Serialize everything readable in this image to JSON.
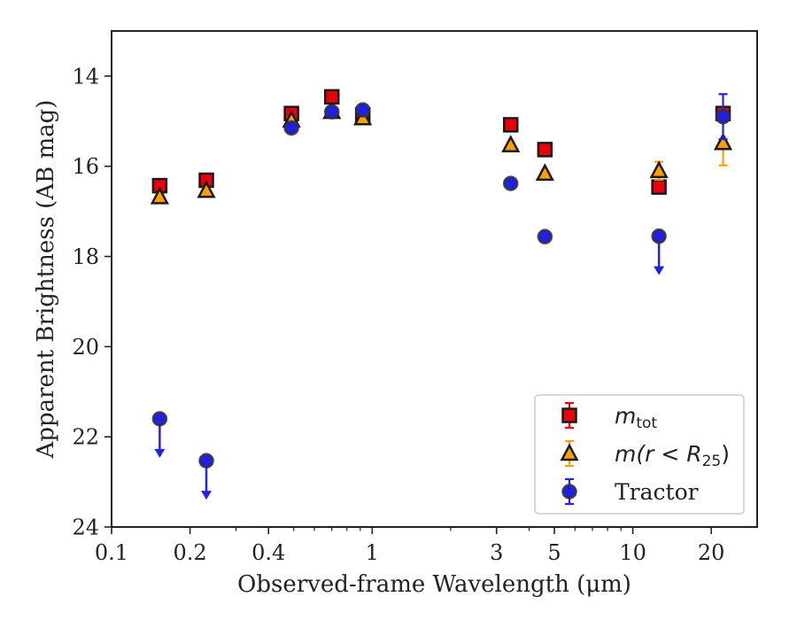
{
  "chart_data": {
    "type": "scatter",
    "xlabel": "Observed-frame Wavelength (μm)",
    "ylabel": "Apparent Brightness (AB mag)",
    "xscale": "log",
    "xlim": [
      0.1,
      30
    ],
    "ylim": [
      24,
      13
    ],
    "y_inverted": true,
    "grid": false,
    "legend_position": "lower-right",
    "x_ticks": [
      {
        "value": 0.1,
        "label": "0.1"
      },
      {
        "value": 0.2,
        "label": "0.2"
      },
      {
        "value": 0.4,
        "label": "0.4"
      },
      {
        "value": 1,
        "label": "1"
      },
      {
        "value": 3,
        "label": "3"
      },
      {
        "value": 5,
        "label": "5"
      },
      {
        "value": 10,
        "label": "10"
      },
      {
        "value": 20,
        "label": "20"
      }
    ],
    "y_ticks": [
      {
        "value": 14,
        "label": "14"
      },
      {
        "value": 16,
        "label": "16"
      },
      {
        "value": 18,
        "label": "18"
      },
      {
        "value": 20,
        "label": "20"
      },
      {
        "value": 22,
        "label": "22"
      },
      {
        "value": 24,
        "label": "24"
      }
    ],
    "series": [
      {
        "name_main": "m",
        "name_sub": "tot",
        "marker": "square",
        "color": "#e8000b",
        "errcolor": "#e8000b",
        "points": [
          {
            "x": 0.153,
            "y": 16.43,
            "err": 0.05
          },
          {
            "x": 0.231,
            "y": 16.31,
            "err": 0.05
          },
          {
            "x": 0.49,
            "y": 14.83,
            "err": 0.05
          },
          {
            "x": 0.7,
            "y": 14.46,
            "err": 0.05
          },
          {
            "x": 0.92,
            "y": 14.86,
            "err": 0.05
          },
          {
            "x": 3.4,
            "y": 15.08,
            "err": 0.05
          },
          {
            "x": 4.6,
            "y": 15.63,
            "err": 0.05
          },
          {
            "x": 12.6,
            "y": 16.46,
            "err": 0.08
          },
          {
            "x": 22.2,
            "y": 14.83,
            "err": 0.07
          }
        ]
      },
      {
        "name_main": "m(r < R",
        "name_sub": "25",
        "name_tail": ")",
        "marker": "triangle",
        "color": "#ff9f00",
        "errcolor": "#ff9f00",
        "points": [
          {
            "x": 0.153,
            "y": 16.68,
            "err": 0.05
          },
          {
            "x": 0.231,
            "y": 16.54,
            "err": 0.05
          },
          {
            "x": 0.49,
            "y": 14.98,
            "err": 0.05
          },
          {
            "x": 0.7,
            "y": 14.79,
            "err": 0.05
          },
          {
            "x": 0.92,
            "y": 14.93,
            "err": 0.05
          },
          {
            "x": 3.4,
            "y": 15.53,
            "err": 0.05
          },
          {
            "x": 4.6,
            "y": 16.16,
            "err": 0.05
          },
          {
            "x": 12.6,
            "y": 16.1,
            "err": 0.2
          },
          {
            "x": 22.2,
            "y": 15.48,
            "err": 0.5
          }
        ]
      },
      {
        "name_main": "Tractor",
        "marker": "circle",
        "color": "#1f1fe6",
        "errcolor": "#2323e8",
        "points": [
          {
            "x": 0.153,
            "y": 21.6,
            "upper_limit": true
          },
          {
            "x": 0.231,
            "y": 22.53,
            "upper_limit": true
          },
          {
            "x": 0.49,
            "y": 15.15,
            "err": 0.05
          },
          {
            "x": 0.7,
            "y": 14.79,
            "err": 0.05
          },
          {
            "x": 0.92,
            "y": 14.75,
            "err": 0.05
          },
          {
            "x": 3.4,
            "y": 16.38,
            "err": 0.05
          },
          {
            "x": 4.6,
            "y": 17.56,
            "err": 0.05
          },
          {
            "x": 12.6,
            "y": 17.55,
            "upper_limit": true
          },
          {
            "x": 22.2,
            "y": 14.9,
            "err": 0.5
          }
        ]
      }
    ]
  }
}
